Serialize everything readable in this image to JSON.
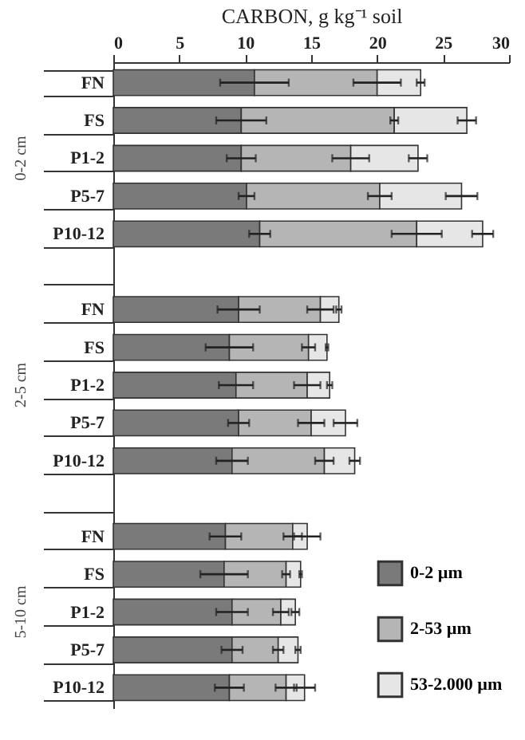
{
  "chart_data": {
    "type": "bar",
    "orientation": "horizontal",
    "stacked": true,
    "xlabel": "CARBON, g kg⁻¹ soil",
    "xlim": [
      0,
      30
    ],
    "xticks": [
      0,
      5,
      10,
      15,
      20,
      25,
      30
    ],
    "grid": false,
    "legend": "bottom right",
    "categories": [
      "FN",
      "FS",
      "P1-2",
      "P5-7",
      "P10-12",
      null,
      "FN",
      "FS",
      "P1-2",
      "P5-7",
      "P10-12",
      null,
      "FN",
      "FS",
      "P1-2",
      "P5-7",
      "P10-12"
    ],
    "annotations": [
      "0-2 cm",
      "2-5 cm",
      "5-10 cm"
    ],
    "series": [
      {
        "name": "0-2 µm",
        "color": "#7a7a7a",
        "values": [
          10.7,
          9.7,
          9.7,
          10.1,
          11.1,
          null,
          9.5,
          8.8,
          9.3,
          9.5,
          9.0,
          null,
          8.5,
          8.4,
          9.0,
          9.0,
          8.8
        ],
        "errors": [
          2.6,
          1.9,
          1.1,
          0.6,
          0.8,
          null,
          1.6,
          1.8,
          1.3,
          0.8,
          1.2,
          null,
          1.2,
          1.8,
          1.2,
          0.8,
          1.1
        ]
      },
      {
        "name": "2-53 µm",
        "color": "#b5b5b5",
        "values": [
          9.3,
          11.6,
          8.3,
          10.1,
          11.9,
          null,
          6.2,
          6.0,
          5.4,
          5.5,
          7.0,
          null,
          5.1,
          4.7,
          3.7,
          3.5,
          4.3
        ],
        "errors": [
          1.8,
          0.3,
          1.4,
          0.9,
          1.9,
          null,
          1.0,
          0.5,
          1.0,
          1.0,
          0.7,
          null,
          0.7,
          0.3,
          0.6,
          0.4,
          0.8
        ]
      },
      {
        "name": "53-2.000 µm",
        "color": "#e6e6e6",
        "values": [
          3.3,
          5.5,
          5.1,
          6.2,
          5.0,
          null,
          1.4,
          1.4,
          1.7,
          2.6,
          2.3,
          null,
          1.1,
          1.1,
          1.1,
          1.5,
          1.4
        ],
        "errors": [
          0.3,
          0.7,
          0.7,
          1.2,
          0.8,
          null,
          0.2,
          0.1,
          0.2,
          0.9,
          0.4,
          null,
          1.0,
          0.1,
          0.3,
          0.2,
          0.8
        ]
      }
    ]
  }
}
